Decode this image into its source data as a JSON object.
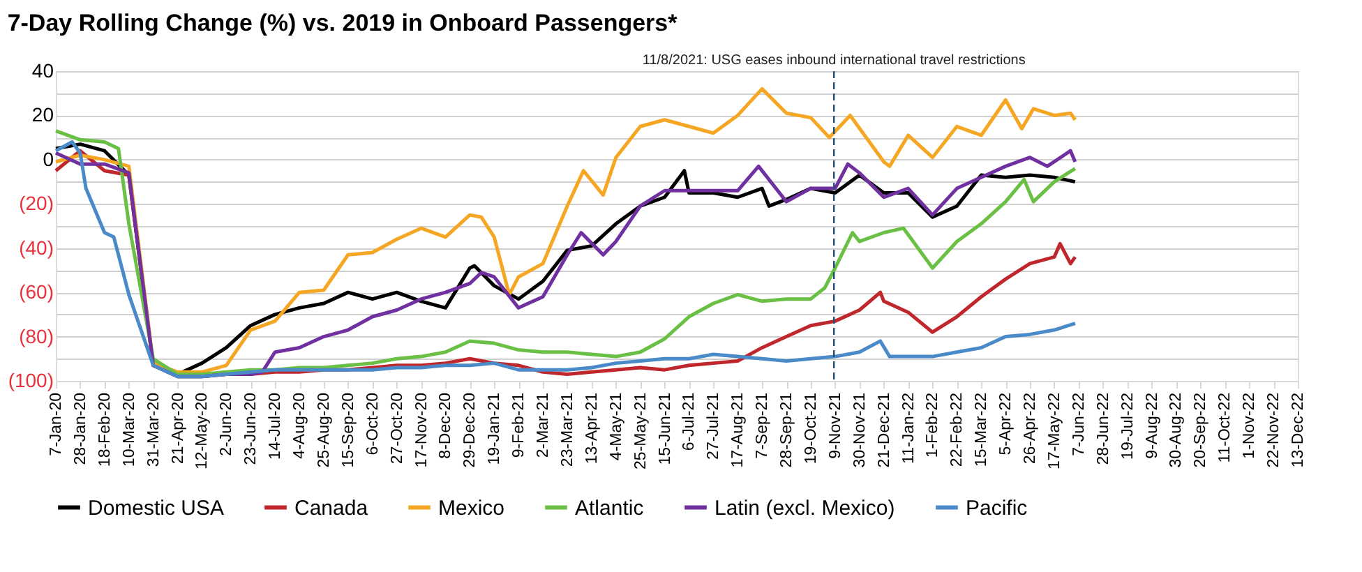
{
  "chart_data": {
    "type": "line",
    "title": "7-Day Rolling Change (%) vs. 2019 in Onboard Passengers*",
    "ylim": [
      -100,
      40
    ],
    "yticks": [
      {
        "value": -100,
        "label": "(100)"
      },
      {
        "value": -90,
        "label": null
      },
      {
        "value": -80,
        "label": "(80)"
      },
      {
        "value": -70,
        "label": null
      },
      {
        "value": -60,
        "label": "(60)"
      },
      {
        "value": -50,
        "label": null
      },
      {
        "value": -40,
        "label": "(40)"
      },
      {
        "value": -30,
        "label": null
      },
      {
        "value": -20,
        "label": "(20)"
      },
      {
        "value": -10,
        "label": null
      },
      {
        "value": 0,
        "label": "0"
      },
      {
        "value": 10,
        "label": null
      },
      {
        "value": 20,
        "label": "20"
      },
      {
        "value": 30,
        "label": null
      },
      {
        "value": 40,
        "label": "40"
      }
    ],
    "xlim": [
      "2020-01-07",
      "2022-12-13"
    ],
    "xticks": [
      {
        "value": "2020-01-07",
        "label": "7-Jan-20"
      },
      {
        "value": "2020-01-28",
        "label": "28-Jan-20"
      },
      {
        "value": "2020-02-18",
        "label": "18-Feb-20"
      },
      {
        "value": "2020-03-10",
        "label": "10-Mar-20"
      },
      {
        "value": "2020-03-31",
        "label": "31-Mar-20"
      },
      {
        "value": "2020-04-21",
        "label": "21-Apr-20"
      },
      {
        "value": "2020-05-12",
        "label": "12-May-20"
      },
      {
        "value": "2020-06-02",
        "label": "2-Jun-20"
      },
      {
        "value": "2020-06-23",
        "label": "23-Jun-20"
      },
      {
        "value": "2020-07-14",
        "label": "14-Jul-20"
      },
      {
        "value": "2020-08-04",
        "label": "4-Aug-20"
      },
      {
        "value": "2020-08-25",
        "label": "25-Aug-20"
      },
      {
        "value": "2020-09-15",
        "label": "15-Sep-20"
      },
      {
        "value": "2020-10-06",
        "label": "6-Oct-20"
      },
      {
        "value": "2020-10-27",
        "label": "27-Oct-20"
      },
      {
        "value": "2020-11-17",
        "label": "17-Nov-20"
      },
      {
        "value": "2020-12-08",
        "label": "8-Dec-20"
      },
      {
        "value": "2020-12-29",
        "label": "29-Dec-20"
      },
      {
        "value": "2021-01-19",
        "label": "19-Jan-21"
      },
      {
        "value": "2021-02-09",
        "label": "9-Feb-21"
      },
      {
        "value": "2021-03-02",
        "label": "2-Mar-21"
      },
      {
        "value": "2021-03-23",
        "label": "23-Mar-21"
      },
      {
        "value": "2021-04-13",
        "label": "13-Apr-21"
      },
      {
        "value": "2021-05-04",
        "label": "4-May-21"
      },
      {
        "value": "2021-05-25",
        "label": "25-May-21"
      },
      {
        "value": "2021-06-15",
        "label": "15-Jun-21"
      },
      {
        "value": "2021-07-06",
        "label": "6-Jul-21"
      },
      {
        "value": "2021-07-27",
        "label": "27-Jul-21"
      },
      {
        "value": "2021-08-17",
        "label": "17-Aug-21"
      },
      {
        "value": "2021-09-07",
        "label": "7-Sep-21"
      },
      {
        "value": "2021-09-28",
        "label": "28-Sep-21"
      },
      {
        "value": "2021-10-19",
        "label": "19-Oct-21"
      },
      {
        "value": "2021-11-09",
        "label": "9-Nov-21"
      },
      {
        "value": "2021-11-30",
        "label": "30-Nov-21"
      },
      {
        "value": "2021-12-21",
        "label": "21-Dec-21"
      },
      {
        "value": "2022-01-11",
        "label": "11-Jan-22"
      },
      {
        "value": "2022-02-01",
        "label": "1-Feb-22"
      },
      {
        "value": "2022-02-22",
        "label": "22-Feb-22"
      },
      {
        "value": "2022-03-15",
        "label": "15-Mar-22"
      },
      {
        "value": "2022-04-05",
        "label": "5-Apr-22"
      },
      {
        "value": "2022-04-26",
        "label": "26-Apr-22"
      },
      {
        "value": "2022-05-17",
        "label": "17-May-22"
      },
      {
        "value": "2022-06-07",
        "label": "7-Jun-22"
      },
      {
        "value": "2022-06-28",
        "label": "28-Jun-22"
      },
      {
        "value": "2022-07-19",
        "label": "19-Jul-22"
      },
      {
        "value": "2022-08-09",
        "label": "9-Aug-22"
      },
      {
        "value": "2022-08-30",
        "label": "30-Aug-22"
      },
      {
        "value": "2022-09-20",
        "label": "20-Sep-22"
      },
      {
        "value": "2022-10-11",
        "label": "11-Oct-22"
      },
      {
        "value": "2022-11-01",
        "label": "1-Nov-22"
      },
      {
        "value": "2022-11-22",
        "label": "22-Nov-22"
      },
      {
        "value": "2022-12-13",
        "label": "13-Dec-22"
      }
    ],
    "grid": "y",
    "legend": "bottom",
    "line_style": "solid",
    "marker": "none",
    "ref_lines": [
      {
        "axis": "x",
        "value": "2021-11-08",
        "label": "11/8/2021: USG eases inbound international travel restrictions",
        "color": "#1f4e79",
        "line_style": "dashed"
      }
    ],
    "series": [
      {
        "name": "Domestic USA",
        "color": "#000000",
        "x": [
          "2020-01-07",
          "2020-01-28",
          "2020-02-18",
          "2020-03-10",
          "2020-03-31",
          "2020-04-21",
          "2020-05-12",
          "2020-06-02",
          "2020-06-23",
          "2020-07-14",
          "2020-08-04",
          "2020-08-25",
          "2020-09-15",
          "2020-10-06",
          "2020-10-27",
          "2020-11-17",
          "2020-12-08",
          "2020-12-29",
          "2021-01-02",
          "2021-01-19",
          "2021-02-09",
          "2021-03-02",
          "2021-03-23",
          "2021-04-13",
          "2021-05-04",
          "2021-05-25",
          "2021-06-15",
          "2021-07-02",
          "2021-07-06",
          "2021-07-27",
          "2021-08-17",
          "2021-09-07",
          "2021-09-13",
          "2021-09-28",
          "2021-10-19",
          "2021-11-09",
          "2021-11-30",
          "2021-12-21",
          "2022-01-11",
          "2022-02-01",
          "2022-02-22",
          "2022-03-15",
          "2022-04-05",
          "2022-04-26",
          "2022-05-17",
          "2022-06-04"
        ],
        "values": [
          5,
          7,
          4,
          -7,
          -93,
          -97,
          -92,
          -85,
          -75,
          -70,
          -67,
          -65,
          -60,
          -63,
          -60,
          -64,
          -67,
          -49,
          -48,
          -57,
          -63,
          -55,
          -41,
          -39,
          -29,
          -21,
          -17,
          -5,
          -15,
          -15,
          -17,
          -13,
          -21,
          -18,
          -13,
          -15,
          -7,
          -15,
          -15,
          -26,
          -21,
          -7,
          -8,
          -7,
          -8,
          -10
        ]
      },
      {
        "name": "Canada",
        "color": "#c0272d",
        "x": [
          "2020-01-07",
          "2020-01-28",
          "2020-02-18",
          "2020-03-10",
          "2020-03-31",
          "2020-04-21",
          "2020-05-12",
          "2020-06-02",
          "2020-06-23",
          "2020-07-14",
          "2020-08-04",
          "2020-08-25",
          "2020-09-15",
          "2020-10-06",
          "2020-10-27",
          "2020-11-17",
          "2020-12-08",
          "2020-12-29",
          "2021-01-19",
          "2021-02-09",
          "2021-03-02",
          "2021-03-23",
          "2021-04-13",
          "2021-05-04",
          "2021-05-25",
          "2021-06-15",
          "2021-07-06",
          "2021-07-27",
          "2021-08-17",
          "2021-09-07",
          "2021-09-28",
          "2021-10-19",
          "2021-11-09",
          "2021-11-30",
          "2021-12-18",
          "2021-12-21",
          "2022-01-11",
          "2022-02-01",
          "2022-02-22",
          "2022-03-15",
          "2022-04-05",
          "2022-04-26",
          "2022-05-17",
          "2022-05-22",
          "2022-05-31",
          "2022-06-04"
        ],
        "values": [
          -5,
          4,
          -5,
          -7,
          -93,
          -98,
          -98,
          -97,
          -97,
          -96,
          -96,
          -95,
          -95,
          -94,
          -93,
          -93,
          -92,
          -90,
          -92,
          -93,
          -96,
          -97,
          -96,
          -95,
          -94,
          -95,
          -93,
          -92,
          -91,
          -85,
          -80,
          -75,
          -73,
          -68,
          -60,
          -64,
          -69,
          -78,
          -71,
          -62,
          -54,
          -47,
          -44,
          -38,
          -47,
          -44
        ]
      },
      {
        "name": "Mexico",
        "color": "#f5a623",
        "x": [
          "2020-01-07",
          "2020-01-28",
          "2020-02-18",
          "2020-03-10",
          "2020-03-31",
          "2020-04-21",
          "2020-05-12",
          "2020-06-02",
          "2020-06-23",
          "2020-07-14",
          "2020-08-04",
          "2020-08-25",
          "2020-09-15",
          "2020-10-06",
          "2020-10-27",
          "2020-11-17",
          "2020-12-08",
          "2020-12-29",
          "2021-01-08",
          "2021-01-19",
          "2021-02-01",
          "2021-02-09",
          "2021-03-02",
          "2021-03-23",
          "2021-04-06",
          "2021-04-23",
          "2021-05-04",
          "2021-05-25",
          "2021-06-15",
          "2021-07-06",
          "2021-07-27",
          "2021-08-17",
          "2021-09-07",
          "2021-09-28",
          "2021-10-19",
          "2021-11-04",
          "2021-11-22",
          "2021-12-21",
          "2021-12-26",
          "2022-01-11",
          "2022-02-01",
          "2022-02-22",
          "2022-03-15",
          "2022-04-05",
          "2022-04-19",
          "2022-04-29",
          "2022-05-17",
          "2022-05-31",
          "2022-06-04"
        ],
        "values": [
          -1,
          2,
          0,
          -3,
          -92,
          -96,
          -96,
          -93,
          -77,
          -73,
          -60,
          -59,
          -43,
          -42,
          -36,
          -31,
          -35,
          -25,
          -26,
          -35,
          -61,
          -53,
          -47,
          -21,
          -5,
          -16,
          1,
          15,
          18,
          15,
          12,
          20,
          32,
          21,
          19,
          10,
          20,
          -1,
          -3,
          11,
          1,
          15,
          11,
          27,
          14,
          23,
          20,
          21,
          18
        ]
      },
      {
        "name": "Atlantic",
        "color": "#6abf45",
        "x": [
          "2020-01-07",
          "2020-01-28",
          "2020-02-18",
          "2020-03-01",
          "2020-03-10",
          "2020-03-31",
          "2020-04-21",
          "2020-05-12",
          "2020-06-02",
          "2020-06-23",
          "2020-07-14",
          "2020-08-04",
          "2020-08-25",
          "2020-09-15",
          "2020-10-06",
          "2020-10-27",
          "2020-11-17",
          "2020-12-08",
          "2020-12-29",
          "2021-01-19",
          "2021-02-09",
          "2021-03-02",
          "2021-03-23",
          "2021-04-13",
          "2021-05-04",
          "2021-05-25",
          "2021-06-15",
          "2021-07-06",
          "2021-07-27",
          "2021-08-17",
          "2021-09-07",
          "2021-09-28",
          "2021-10-19",
          "2021-10-31",
          "2021-11-09",
          "2021-11-24",
          "2021-11-30",
          "2021-12-21",
          "2022-01-07",
          "2022-02-01",
          "2022-02-22",
          "2022-03-15",
          "2022-04-05",
          "2022-04-21",
          "2022-04-29",
          "2022-05-17",
          "2022-06-04"
        ],
        "values": [
          13,
          9,
          8,
          5,
          -29,
          -90,
          -97,
          -97,
          -96,
          -95,
          -95,
          -94,
          -94,
          -93,
          -92,
          -90,
          -89,
          -87,
          -82,
          -83,
          -86,
          -87,
          -87,
          -88,
          -89,
          -87,
          -81,
          -71,
          -65,
          -61,
          -64,
          -63,
          -63,
          -58,
          -49,
          -33,
          -37,
          -33,
          -31,
          -49,
          -37,
          -29,
          -19,
          -9,
          -19,
          -10,
          -4
        ]
      },
      {
        "name": "Latin (excl. Mexico)",
        "color": "#7030a0",
        "x": [
          "2020-01-07",
          "2020-01-28",
          "2020-02-18",
          "2020-03-10",
          "2020-03-31",
          "2020-04-21",
          "2020-05-12",
          "2020-06-02",
          "2020-06-23",
          "2020-07-03",
          "2020-07-14",
          "2020-08-04",
          "2020-08-25",
          "2020-09-15",
          "2020-10-06",
          "2020-10-27",
          "2020-11-17",
          "2020-12-08",
          "2020-12-29",
          "2021-01-08",
          "2021-01-19",
          "2021-02-09",
          "2021-03-02",
          "2021-03-23",
          "2021-04-04",
          "2021-04-23",
          "2021-05-04",
          "2021-05-25",
          "2021-06-15",
          "2021-07-06",
          "2021-07-27",
          "2021-08-17",
          "2021-09-04",
          "2021-09-28",
          "2021-10-19",
          "2021-11-09",
          "2021-11-20",
          "2021-11-30",
          "2021-12-21",
          "2022-01-11",
          "2022-02-01",
          "2022-02-22",
          "2022-03-15",
          "2022-04-05",
          "2022-04-26",
          "2022-05-11",
          "2022-05-31",
          "2022-06-04"
        ],
        "values": [
          3,
          -2,
          -2,
          -6,
          -93,
          -98,
          -98,
          -97,
          -97,
          -96,
          -87,
          -85,
          -80,
          -77,
          -71,
          -68,
          -63,
          -60,
          -56,
          -51,
          -53,
          -67,
          -62,
          -43,
          -33,
          -43,
          -37,
          -21,
          -14,
          -14,
          -14,
          -14,
          -3,
          -19,
          -13,
          -13,
          -2,
          -6,
          -17,
          -13,
          -25,
          -13,
          -8,
          -3,
          1,
          -3,
          4,
          -1
        ]
      },
      {
        "name": "Pacific",
        "color": "#4a8ac9",
        "x": [
          "2020-01-07",
          "2020-01-21",
          "2020-01-28",
          "2020-02-02",
          "2020-02-18",
          "2020-02-26",
          "2020-03-10",
          "2020-03-31",
          "2020-04-21",
          "2020-05-12",
          "2020-06-02",
          "2020-06-23",
          "2020-07-14",
          "2020-08-04",
          "2020-08-25",
          "2020-09-15",
          "2020-10-06",
          "2020-10-27",
          "2020-11-17",
          "2020-12-08",
          "2020-12-29",
          "2021-01-19",
          "2021-02-09",
          "2021-03-02",
          "2021-03-23",
          "2021-04-13",
          "2021-05-04",
          "2021-05-25",
          "2021-06-15",
          "2021-07-06",
          "2021-07-27",
          "2021-08-17",
          "2021-09-07",
          "2021-09-28",
          "2021-10-19",
          "2021-11-09",
          "2021-11-30",
          "2021-12-18",
          "2021-12-26",
          "2022-01-11",
          "2022-02-01",
          "2022-02-22",
          "2022-03-15",
          "2022-04-05",
          "2022-04-26",
          "2022-05-17",
          "2022-06-04"
        ],
        "values": [
          4,
          8,
          3,
          -13,
          -33,
          -35,
          -61,
          -93,
          -98,
          -98,
          -97,
          -96,
          -95,
          -95,
          -95,
          -95,
          -95,
          -94,
          -94,
          -93,
          -93,
          -92,
          -95,
          -95,
          -95,
          -94,
          -92,
          -91,
          -90,
          -90,
          -88,
          -89,
          -90,
          -91,
          -90,
          -89,
          -87,
          -82,
          -89,
          -89,
          -89,
          -87,
          -85,
          -80,
          -79,
          -77,
          -74
        ]
      }
    ]
  }
}
